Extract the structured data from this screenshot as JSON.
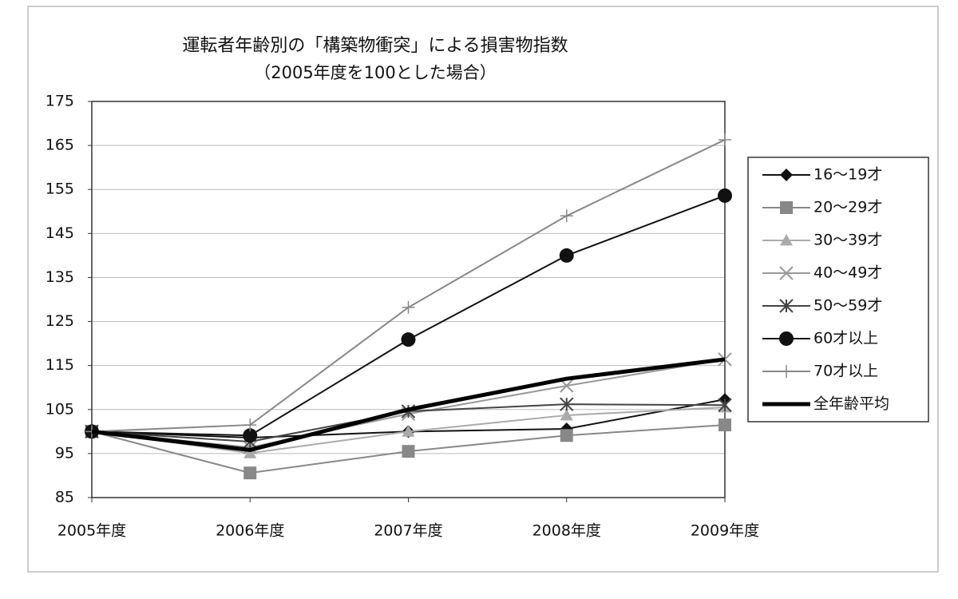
{
  "chart_data": {
    "type": "line",
    "title": "運転者年齢別の「構築物衝突」による損害物指数",
    "subtitle": "（2005年度を100とした場合）",
    "categories": [
      "2005年度",
      "2006年度",
      "2007年度",
      "2008年度",
      "2009年度"
    ],
    "ylim": [
      85,
      175
    ],
    "yticks": [
      85,
      95,
      105,
      115,
      125,
      135,
      145,
      155,
      165,
      175
    ],
    "grid": true,
    "legend": "right",
    "series": [
      {
        "name": "16～19才",
        "color": "#111111",
        "marker": "diamond",
        "values": [
          100,
          98.6,
          100,
          100.6,
          107.3
        ]
      },
      {
        "name": "20～29才",
        "color": "#888888",
        "marker": "square",
        "values": [
          100,
          90.6,
          95.5,
          99.1,
          101.5
        ]
      },
      {
        "name": "30～39才",
        "color": "#aaaaaa",
        "marker": "triangle",
        "values": [
          100,
          95.1,
          100,
          103.7,
          105.5
        ]
      },
      {
        "name": "40～49才",
        "color": "#999999",
        "marker": "x",
        "values": [
          100,
          96.4,
          104,
          110.4,
          116.4
        ]
      },
      {
        "name": "50～59才",
        "color": "#444444",
        "marker": "star",
        "values": [
          100,
          97.7,
          104.6,
          106.2,
          106
        ]
      },
      {
        "name": "60才以上",
        "color": "#111111",
        "marker": "circle",
        "values": [
          100,
          99.1,
          120.9,
          140,
          153.6
        ]
      },
      {
        "name": "70才以上",
        "color": "#888888",
        "marker": "plus",
        "values": [
          100,
          101.5,
          128.2,
          149,
          166.3
        ]
      },
      {
        "name": "全年齢平均",
        "color": "#000000",
        "marker": "none",
        "line_width": 5,
        "values": [
          100,
          95.8,
          105,
          112,
          116.4
        ]
      }
    ]
  }
}
